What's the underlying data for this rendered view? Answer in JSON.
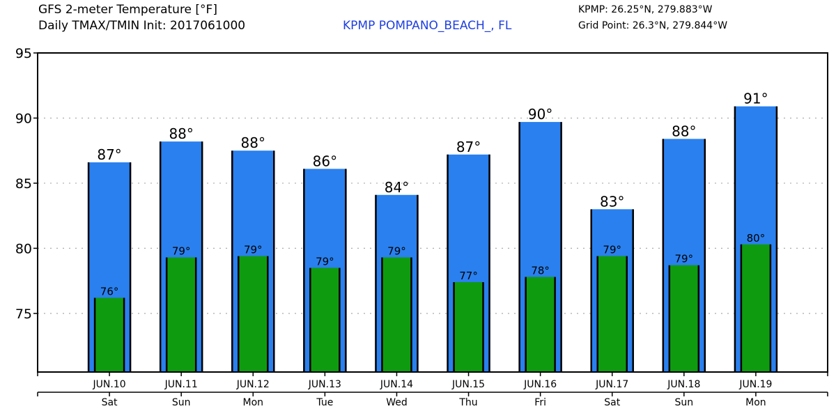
{
  "header": {
    "title_line1": "GFS 2-meter Temperature [°F]",
    "title_line2": "Daily TMAX/TMIN Init: 2017061000",
    "station": "KPMP POMPANO_BEACH_, FL",
    "station_color": "#2040e0",
    "coord_station": "KPMP: 26.25°N, 279.883°W",
    "coord_grid": "Grid Point: 26.3°N, 279.844°W"
  },
  "chart_data": {
    "type": "bar",
    "title": "GFS 2-meter Temperature [°F]",
    "subtitle": "Daily TMAX/TMIN Init: 2017061000",
    "xlabel": "",
    "ylabel": "",
    "ylim": [
      70.5,
      95
    ],
    "yticks": [
      75,
      80,
      85,
      90,
      95
    ],
    "grid": "horizontal dotted",
    "categories": [
      "JUN.10",
      "JUN.11",
      "JUN.12",
      "JUN.13",
      "JUN.14",
      "JUN.15",
      "JUN.16",
      "JUN.17",
      "JUN.18",
      "JUN.19"
    ],
    "weekdays": [
      "Sat",
      "Sun",
      "Mon",
      "Tue",
      "Wed",
      "Thu",
      "Fri",
      "Sat",
      "Sun",
      "Mon"
    ],
    "series": [
      {
        "name": "TMAX",
        "color": "#2a80ee",
        "values": [
          86.6,
          88.2,
          87.5,
          86.1,
          84.1,
          87.2,
          89.7,
          83.0,
          88.4,
          90.9
        ],
        "labels": [
          "87°",
          "88°",
          "88°",
          "86°",
          "84°",
          "87°",
          "90°",
          "83°",
          "88°",
          "91°"
        ]
      },
      {
        "name": "TMIN",
        "color": "#0f9b0f",
        "values": [
          76.2,
          79.3,
          79.4,
          78.5,
          79.3,
          77.4,
          77.8,
          79.4,
          78.7,
          80.3
        ],
        "labels": [
          "76°",
          "79°",
          "79°",
          "79°",
          "79°",
          "77°",
          "78°",
          "79°",
          "79°",
          "80°"
        ]
      }
    ]
  }
}
